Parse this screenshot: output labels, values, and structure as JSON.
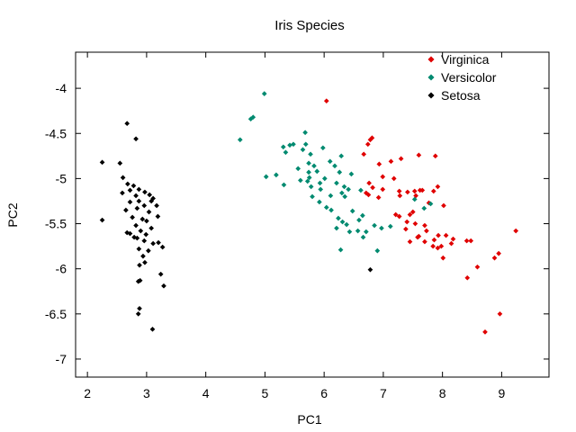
{
  "chart_data": {
    "type": "scatter",
    "title": "Iris Species",
    "xlabel": "PC1",
    "ylabel": "PC2",
    "xlim": [
      1.8,
      9.8
    ],
    "ylim": [
      -7.2,
      -3.6
    ],
    "xticks": [
      2,
      3,
      4,
      5,
      6,
      7,
      8,
      9
    ],
    "yticks": [
      -4,
      -4.5,
      -5,
      -5.5,
      -6,
      -6.5,
      -7
    ],
    "grid": false,
    "legend_position": "top-right",
    "series": [
      {
        "name": "Virginica",
        "color": "#e00000",
        "points": [
          [
            6.04,
            -4.14
          ],
          [
            6.78,
            -4.57
          ],
          [
            6.81,
            -4.55
          ],
          [
            6.74,
            -4.62
          ],
          [
            6.67,
            -4.73
          ],
          [
            6.93,
            -4.84
          ],
          [
            7.13,
            -4.81
          ],
          [
            7.3,
            -4.78
          ],
          [
            7.6,
            -4.74
          ],
          [
            7.88,
            -4.75
          ],
          [
            6.99,
            -4.98
          ],
          [
            7.18,
            -5.0
          ],
          [
            6.76,
            -5.05
          ],
          [
            6.82,
            -5.1
          ],
          [
            6.99,
            -5.12
          ],
          [
            6.71,
            -5.16
          ],
          [
            6.75,
            -5.18
          ],
          [
            6.92,
            -5.21
          ],
          [
            7.27,
            -5.14
          ],
          [
            7.28,
            -5.19
          ],
          [
            7.41,
            -5.15
          ],
          [
            7.53,
            -5.14
          ],
          [
            7.62,
            -5.13
          ],
          [
            7.66,
            -5.13
          ],
          [
            7.85,
            -5.14
          ],
          [
            7.92,
            -5.09
          ],
          [
            7.55,
            -5.19
          ],
          [
            7.77,
            -5.27
          ],
          [
            8.02,
            -5.3
          ],
          [
            7.5,
            -5.37
          ],
          [
            7.45,
            -5.4
          ],
          [
            7.21,
            -5.4
          ],
          [
            7.27,
            -5.42
          ],
          [
            7.4,
            -5.48
          ],
          [
            7.54,
            -5.5
          ],
          [
            7.7,
            -5.52
          ],
          [
            7.38,
            -5.56
          ],
          [
            7.73,
            -5.58
          ],
          [
            7.6,
            -5.64
          ],
          [
            7.58,
            -5.65
          ],
          [
            7.45,
            -5.7
          ],
          [
            7.7,
            -5.7
          ],
          [
            7.86,
            -5.68
          ],
          [
            7.93,
            -5.63
          ],
          [
            8.06,
            -5.63
          ],
          [
            8.18,
            -5.67
          ],
          [
            7.84,
            -5.75
          ],
          [
            7.92,
            -5.77
          ],
          [
            7.98,
            -5.75
          ],
          [
            8.15,
            -5.72
          ],
          [
            8.41,
            -5.69
          ],
          [
            8.48,
            -5.69
          ],
          [
            8.01,
            -5.88
          ],
          [
            8.59,
            -5.98
          ],
          [
            8.88,
            -5.88
          ],
          [
            8.42,
            -6.1
          ],
          [
            9.24,
            -5.58
          ],
          [
            8.95,
            -5.83
          ],
          [
            8.97,
            -6.5
          ],
          [
            8.72,
            -6.7
          ]
        ]
      },
      {
        "name": "Versicolor",
        "color": "#008a70",
        "points": [
          [
            4.99,
            -4.06
          ],
          [
            4.8,
            -4.32
          ],
          [
            4.76,
            -4.34
          ],
          [
            4.58,
            -4.57
          ],
          [
            5.31,
            -4.65
          ],
          [
            5.42,
            -4.63
          ],
          [
            5.48,
            -4.62
          ],
          [
            5.68,
            -4.49
          ],
          [
            5.69,
            -4.62
          ],
          [
            5.64,
            -4.68
          ],
          [
            5.77,
            -4.73
          ],
          [
            5.98,
            -4.66
          ],
          [
            6.29,
            -4.75
          ],
          [
            5.35,
            -4.71
          ],
          [
            5.56,
            -4.89
          ],
          [
            5.74,
            -4.83
          ],
          [
            5.83,
            -4.86
          ],
          [
            5.74,
            -4.93
          ],
          [
            5.75,
            -4.99
          ],
          [
            5.88,
            -4.92
          ],
          [
            6.1,
            -4.81
          ],
          [
            6.18,
            -4.86
          ],
          [
            6.26,
            -4.93
          ],
          [
            6.46,
            -4.95
          ],
          [
            5.19,
            -4.96
          ],
          [
            5.02,
            -4.98
          ],
          [
            5.32,
            -5.07
          ],
          [
            5.6,
            -5.02
          ],
          [
            5.72,
            -5.03
          ],
          [
            5.78,
            -5.09
          ],
          [
            5.93,
            -5.05
          ],
          [
            6.01,
            -5.0
          ],
          [
            5.94,
            -5.12
          ],
          [
            6.21,
            -5.05
          ],
          [
            6.34,
            -5.09
          ],
          [
            6.41,
            -5.12
          ],
          [
            5.8,
            -5.2
          ],
          [
            5.92,
            -5.26
          ],
          [
            6.11,
            -5.19
          ],
          [
            6.3,
            -5.16
          ],
          [
            6.35,
            -5.2
          ],
          [
            6.62,
            -5.13
          ],
          [
            6.12,
            -5.35
          ],
          [
            6.04,
            -5.32
          ],
          [
            6.24,
            -5.44
          ],
          [
            6.31,
            -5.48
          ],
          [
            6.48,
            -5.36
          ],
          [
            6.59,
            -5.46
          ],
          [
            6.65,
            -5.41
          ],
          [
            6.21,
            -5.55
          ],
          [
            6.38,
            -5.51
          ],
          [
            6.43,
            -5.59
          ],
          [
            6.57,
            -5.58
          ],
          [
            6.71,
            -5.59
          ],
          [
            6.85,
            -5.52
          ],
          [
            6.97,
            -5.55
          ],
          [
            7.12,
            -5.53
          ],
          [
            6.66,
            -5.65
          ],
          [
            6.9,
            -5.8
          ],
          [
            6.28,
            -5.79
          ],
          [
            7.53,
            -5.23
          ],
          [
            7.69,
            -5.33
          ],
          [
            7.8,
            -5.28
          ]
        ]
      },
      {
        "name": "Setosa",
        "color": "#000000",
        "points": [
          [
            2.67,
            -4.39
          ],
          [
            2.82,
            -4.56
          ],
          [
            2.25,
            -4.82
          ],
          [
            2.55,
            -4.83
          ],
          [
            2.6,
            -4.99
          ],
          [
            2.68,
            -5.06
          ],
          [
            2.72,
            -5.13
          ],
          [
            2.78,
            -5.08
          ],
          [
            2.87,
            -5.12
          ],
          [
            2.82,
            -5.19
          ],
          [
            2.97,
            -5.15
          ],
          [
            3.05,
            -5.18
          ],
          [
            2.59,
            -5.16
          ],
          [
            2.72,
            -5.26
          ],
          [
            2.87,
            -5.25
          ],
          [
            3.08,
            -5.25
          ],
          [
            3.11,
            -5.22
          ],
          [
            3.17,
            -5.3
          ],
          [
            2.65,
            -5.35
          ],
          [
            2.84,
            -5.33
          ],
          [
            2.96,
            -5.3
          ],
          [
            3.04,
            -5.37
          ],
          [
            3.19,
            -5.42
          ],
          [
            2.25,
            -5.46
          ],
          [
            2.76,
            -5.43
          ],
          [
            2.93,
            -5.45
          ],
          [
            3.0,
            -5.47
          ],
          [
            2.82,
            -5.52
          ],
          [
            3.08,
            -5.55
          ],
          [
            2.9,
            -5.58
          ],
          [
            2.67,
            -5.6
          ],
          [
            2.72,
            -5.61
          ],
          [
            2.79,
            -5.65
          ],
          [
            2.84,
            -5.66
          ],
          [
            2.99,
            -5.62
          ],
          [
            2.96,
            -5.69
          ],
          [
            3.11,
            -5.72
          ],
          [
            3.2,
            -5.71
          ],
          [
            3.27,
            -5.76
          ],
          [
            2.87,
            -5.78
          ],
          [
            3.03,
            -5.8
          ],
          [
            2.94,
            -5.86
          ],
          [
            2.97,
            -5.93
          ],
          [
            2.88,
            -5.96
          ],
          [
            3.24,
            -6.06
          ],
          [
            2.86,
            -6.14
          ],
          [
            2.89,
            -6.13
          ],
          [
            3.29,
            -6.19
          ],
          [
            2.88,
            -6.44
          ],
          [
            2.86,
            -6.5
          ],
          [
            3.1,
            -6.67
          ],
          [
            6.78,
            -6.01
          ]
        ]
      }
    ]
  }
}
